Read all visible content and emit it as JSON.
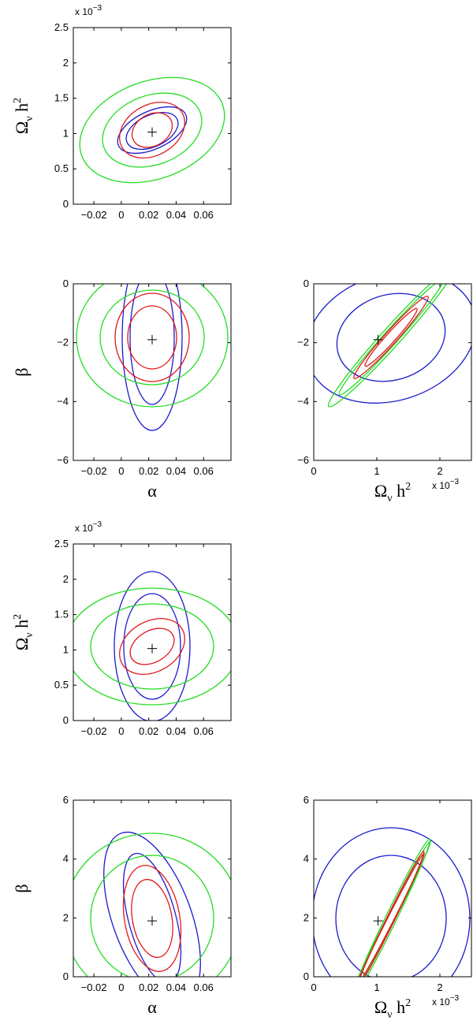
{
  "chart_data": [
    {
      "type": "contour",
      "xlabel": "",
      "ylabel": "Ω_ν h^2",
      "x_ticks": [
        "−0.02",
        "0",
        "0.02",
        "0.04",
        "0.06"
      ],
      "y_ticks": [
        "0",
        "0.5",
        "1",
        "1.5",
        "2",
        "2.5"
      ],
      "y_exponent": "x 10^−3",
      "xlim": [
        -0.035,
        0.08
      ],
      "ylim": [
        0,
        2.5
      ],
      "best_fit": [
        0.0225,
        0.00102
      ],
      "colors": {
        "red": "#e0191b",
        "green": "#22dd22",
        "blue": "#1a1acc"
      }
    },
    {
      "type": "contour",
      "xlabel": "α",
      "ylabel": "β",
      "x_ticks": [
        "−0.02",
        "0",
        "0.02",
        "0.04",
        "0.06"
      ],
      "y_ticks": [
        "0",
        "−2",
        "−4",
        "−6"
      ],
      "xlim": [
        -0.035,
        0.08
      ],
      "ylim": [
        -6,
        0
      ],
      "best_fit": [
        0.0225,
        -1.9
      ]
    },
    {
      "type": "contour",
      "xlabel": "Ω_ν h^2",
      "ylabel": "",
      "x_ticks": [
        "0",
        "1",
        "2"
      ],
      "x_exponent": "x 10^−3",
      "y_ticks": [
        "0",
        "−2",
        "−4",
        "−6"
      ],
      "xlim": [
        0,
        2.5
      ],
      "ylim": [
        -6,
        0
      ],
      "best_fit": [
        1.02,
        -1.9
      ]
    },
    {
      "type": "contour",
      "xlabel": "",
      "ylabel": "Ω_ν h^2",
      "x_ticks": [
        "−0.02",
        "0",
        "0.02",
        "0.04",
        "0.06"
      ],
      "y_ticks": [
        "0",
        "0.5",
        "1",
        "1.5",
        "2",
        "2.5"
      ],
      "y_exponent": "x 10^−3",
      "xlim": [
        -0.035,
        0.08
      ],
      "ylim": [
        0,
        2.5
      ],
      "best_fit": [
        0.0225,
        0.00102
      ]
    },
    {
      "type": "contour",
      "xlabel": "α",
      "ylabel": "β",
      "x_ticks": [
        "−0.02",
        "0",
        "0.02",
        "0.04",
        "0.06"
      ],
      "y_ticks": [
        "0",
        "2",
        "4",
        "6"
      ],
      "xlim": [
        -0.035,
        0.08
      ],
      "ylim": [
        0,
        6
      ],
      "best_fit": [
        0.0225,
        1.9
      ]
    },
    {
      "type": "contour",
      "xlabel": "Ω_ν h^2",
      "ylabel": "",
      "x_ticks": [
        "0",
        "1",
        "2"
      ],
      "x_exponent": "x 10^−3",
      "y_ticks": [
        "0",
        "2",
        "4",
        "6"
      ],
      "xlim": [
        0,
        2.5
      ],
      "ylim": [
        0,
        6
      ],
      "best_fit": [
        1.02,
        1.9
      ]
    }
  ]
}
